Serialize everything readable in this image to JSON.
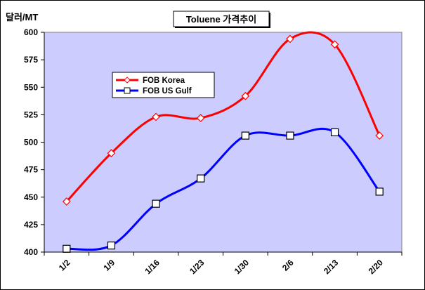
{
  "chart_data": {
    "type": "line",
    "title": "Toluene 가격추이",
    "ylabel": "달러/MT",
    "xlabel": "",
    "categories": [
      "1/2",
      "1/9",
      "1/16",
      "1/23",
      "1/30",
      "2/6",
      "2/13",
      "2/20"
    ],
    "ylim": [
      400,
      600
    ],
    "yticks": [
      400,
      425,
      450,
      475,
      500,
      525,
      550,
      575,
      600
    ],
    "grid": false,
    "legend_position": "left",
    "series": [
      {
        "name": "FOB Korea",
        "color": "#ff0000",
        "marker": "diamond",
        "values": [
          446,
          490,
          523,
          522,
          542,
          594,
          589,
          506
        ]
      },
      {
        "name": "FOB US Gulf",
        "color": "#0000ff",
        "marker": "square",
        "values": [
          403,
          406,
          444,
          467,
          506,
          506,
          509,
          455
        ]
      }
    ],
    "plot_background": "#ccccff"
  }
}
